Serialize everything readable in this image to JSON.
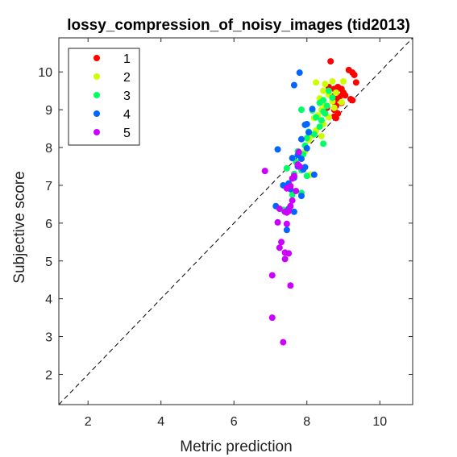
{
  "chart_data": {
    "type": "scatter",
    "title": "lossy_compression_of_noisy_images (tid2013)",
    "xlabel": "Metric prediction",
    "ylabel": "Subjective score",
    "xlim": [
      1.2,
      10.9
    ],
    "ylim": [
      1.2,
      10.9
    ],
    "xticks": [
      2,
      4,
      6,
      8,
      10
    ],
    "yticks": [
      2,
      3,
      4,
      5,
      6,
      7,
      8,
      9,
      10
    ],
    "grid": false,
    "legend_position": "top-left",
    "reference_line": "diagonal y = x, dashed",
    "series": [
      {
        "name": "1",
        "color": "#ff0000",
        "points": [
          [
            8.65,
            10.28
          ],
          [
            9.15,
            10.05
          ],
          [
            9.25,
            9.98
          ],
          [
            9.3,
            9.92
          ],
          [
            9.35,
            9.72
          ],
          [
            8.6,
            9.6
          ],
          [
            8.75,
            9.55
          ],
          [
            8.85,
            9.6
          ],
          [
            8.95,
            9.55
          ],
          [
            8.8,
            9.48
          ],
          [
            9.0,
            9.45
          ],
          [
            8.7,
            9.35
          ],
          [
            8.9,
            9.35
          ],
          [
            9.05,
            9.38
          ],
          [
            8.85,
            9.3
          ],
          [
            9.2,
            9.28
          ],
          [
            9.25,
            9.25
          ],
          [
            8.75,
            9.2
          ],
          [
            8.95,
            9.18
          ],
          [
            8.8,
            9.1
          ],
          [
            8.55,
            9.05
          ],
          [
            8.75,
            9.0
          ],
          [
            8.85,
            8.9
          ],
          [
            8.8,
            8.78
          ],
          [
            8.75,
            8.82
          ]
        ]
      },
      {
        "name": "2",
        "color": "#ccff00",
        "points": [
          [
            8.25,
            9.72
          ],
          [
            8.5,
            9.68
          ],
          [
            8.7,
            9.75
          ],
          [
            9.0,
            9.75
          ],
          [
            8.45,
            9.5
          ],
          [
            8.8,
            9.45
          ],
          [
            8.6,
            9.4
          ],
          [
            8.35,
            9.3
          ],
          [
            8.7,
            9.22
          ],
          [
            8.95,
            9.2
          ],
          [
            8.5,
            9.1
          ],
          [
            8.75,
            9.05
          ],
          [
            8.4,
            9.0
          ],
          [
            8.3,
            8.85
          ],
          [
            8.6,
            8.8
          ],
          [
            8.2,
            8.78
          ],
          [
            8.45,
            8.62
          ],
          [
            8.25,
            8.45
          ],
          [
            8.15,
            8.32
          ],
          [
            8.4,
            8.3
          ],
          [
            8.05,
            8.2
          ],
          [
            7.95,
            7.9
          ],
          [
            8.1,
            7.28
          ]
        ]
      },
      {
        "name": "3",
        "color": "#00ff66",
        "points": [
          [
            8.6,
            9.5
          ],
          [
            8.45,
            9.25
          ],
          [
            8.7,
            9.32
          ],
          [
            8.35,
            9.18
          ],
          [
            8.55,
            9.1
          ],
          [
            7.85,
            9.0
          ],
          [
            8.15,
            8.98
          ],
          [
            8.45,
            8.95
          ],
          [
            8.5,
            8.9
          ],
          [
            8.25,
            8.8
          ],
          [
            8.4,
            8.72
          ],
          [
            8.35,
            8.55
          ],
          [
            8.05,
            8.42
          ],
          [
            8.2,
            8.35
          ],
          [
            8.0,
            8.25
          ],
          [
            8.45,
            8.1
          ],
          [
            7.95,
            8.05
          ],
          [
            7.75,
            7.9
          ],
          [
            7.9,
            7.82
          ],
          [
            7.7,
            7.62
          ],
          [
            7.45,
            7.45
          ],
          [
            7.85,
            7.4
          ],
          [
            7.65,
            7.3
          ],
          [
            8.0,
            7.25
          ],
          [
            7.85,
            6.8
          ],
          [
            7.6,
            6.75
          ],
          [
            7.35,
            6.35
          ]
        ]
      },
      {
        "name": "4",
        "color": "#0066ff",
        "points": [
          [
            7.8,
            9.98
          ],
          [
            7.65,
            9.65
          ],
          [
            8.15,
            9.02
          ],
          [
            8.0,
            8.62
          ],
          [
            7.95,
            8.6
          ],
          [
            8.05,
            8.4
          ],
          [
            7.85,
            8.22
          ],
          [
            8.0,
            7.98
          ],
          [
            7.2,
            7.95
          ],
          [
            7.75,
            7.8
          ],
          [
            7.6,
            7.72
          ],
          [
            7.85,
            7.7
          ],
          [
            7.75,
            7.5
          ],
          [
            7.95,
            7.48
          ],
          [
            7.9,
            7.42
          ],
          [
            8.2,
            7.28
          ],
          [
            7.65,
            7.2
          ],
          [
            7.5,
            7.05
          ],
          [
            7.35,
            7.0
          ],
          [
            7.55,
            6.9
          ],
          [
            7.85,
            6.72
          ],
          [
            7.15,
            6.45
          ],
          [
            7.5,
            6.38
          ],
          [
            7.65,
            6.3
          ],
          [
            7.45,
            5.82
          ]
        ]
      },
      {
        "name": "5",
        "color": "#cc00ff",
        "points": [
          [
            7.78,
            7.88
          ],
          [
            7.75,
            7.55
          ],
          [
            7.8,
            7.5
          ],
          [
            6.85,
            7.38
          ],
          [
            7.65,
            7.25
          ],
          [
            7.6,
            7.18
          ],
          [
            7.55,
            6.98
          ],
          [
            7.45,
            6.92
          ],
          [
            7.7,
            6.85
          ],
          [
            7.6,
            6.6
          ],
          [
            7.55,
            6.45
          ],
          [
            7.25,
            6.38
          ],
          [
            7.4,
            6.3
          ],
          [
            7.45,
            6.28
          ],
          [
            7.5,
            6.32
          ],
          [
            7.2,
            6.02
          ],
          [
            7.45,
            5.98
          ],
          [
            7.3,
            5.5
          ],
          [
            7.25,
            5.35
          ],
          [
            7.4,
            5.22
          ],
          [
            7.5,
            5.2
          ],
          [
            7.4,
            5.05
          ],
          [
            7.05,
            4.62
          ],
          [
            7.55,
            4.35
          ],
          [
            7.05,
            3.5
          ],
          [
            7.35,
            2.85
          ]
        ]
      }
    ]
  }
}
